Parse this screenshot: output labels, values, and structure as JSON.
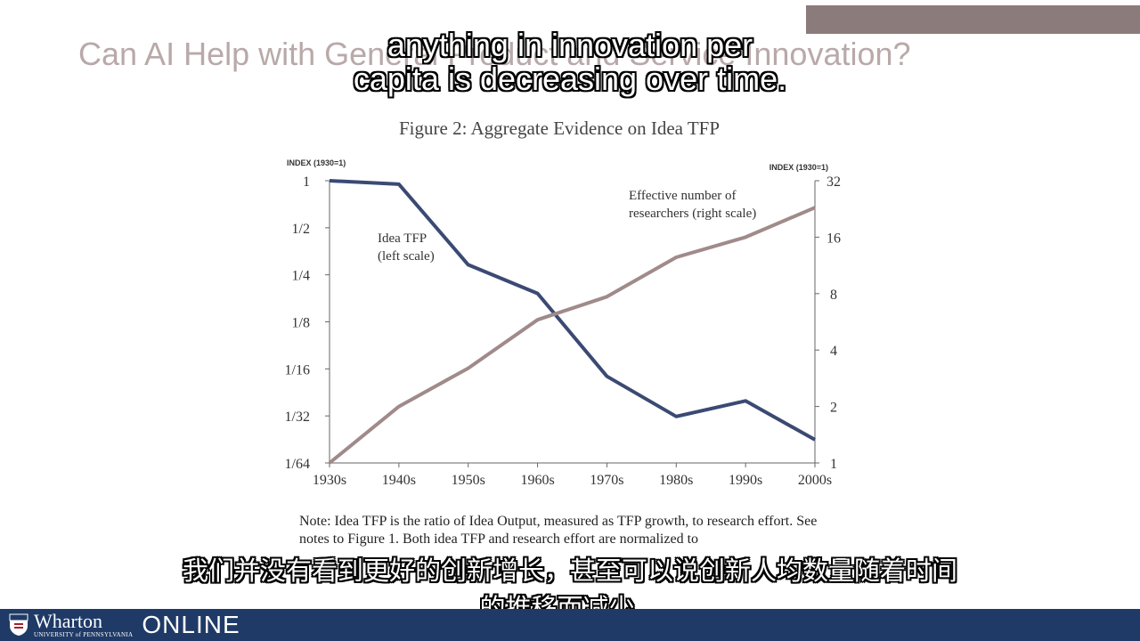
{
  "slide": {
    "title": "Can AI Help with General Product and Service Innovation?"
  },
  "subtitles": {
    "en_line1": "anything in innovation per",
    "en_line2": "capita is decreasing over time.",
    "zh_line1": "我们并没有看到更好的创新增长，甚至可以说创新人均数量随着时间",
    "zh_line2": "的推移而减少。"
  },
  "figure": {
    "title": "Figure 2: Aggregate Evidence on Idea TFP",
    "note": "Note: Idea TFP is the ratio of Idea Output, measured as TFP growth, to research effort. See notes to Figure 1. Both idea TFP and research effort are normalized to"
  },
  "footer": {
    "brand": "Wharton",
    "university": "UNIVERSITY of PENNSYLVANIA",
    "online": "ONLINE"
  },
  "chart_data": {
    "type": "line",
    "title": "Figure 2: Aggregate Evidence on Idea TFP",
    "left_axis_label": "INDEX (1930=1)",
    "right_axis_label": "INDEX (1930=1)",
    "x": [
      "1930s",
      "1940s",
      "1950s",
      "1960s",
      "1970s",
      "1980s",
      "1990s",
      "2000s"
    ],
    "left_ticks": [
      "1",
      "1/2",
      "1/4",
      "1/8",
      "1/16",
      "1/32",
      "1/64"
    ],
    "left_tick_values": [
      1,
      0.5,
      0.25,
      0.125,
      0.0625,
      0.03125,
      0.015625
    ],
    "right_ticks": [
      "32",
      "16",
      "8",
      "4",
      "2",
      "1"
    ],
    "right_tick_values": [
      32,
      16,
      8,
      4,
      2,
      1
    ],
    "left_scale": "log2",
    "right_scale": "log2",
    "left_ylim": [
      0.015625,
      1
    ],
    "right_ylim": [
      1,
      32
    ],
    "series": [
      {
        "name": "Idea TFP",
        "annotation": [
          "Idea TFP",
          "(left scale)"
        ],
        "axis": "left",
        "color": "#3b4a73",
        "values": [
          1.0,
          0.95,
          0.29,
          0.19,
          0.056,
          0.031,
          0.039,
          0.022
        ]
      },
      {
        "name": "Effective number of researchers",
        "annotation": [
          "Effective number of",
          "researchers (right scale)"
        ],
        "axis": "right",
        "color": "#a08a8a",
        "values": [
          1.0,
          2.0,
          3.2,
          5.8,
          7.7,
          12.5,
          16.0,
          23.0
        ]
      }
    ],
    "grid": false
  }
}
